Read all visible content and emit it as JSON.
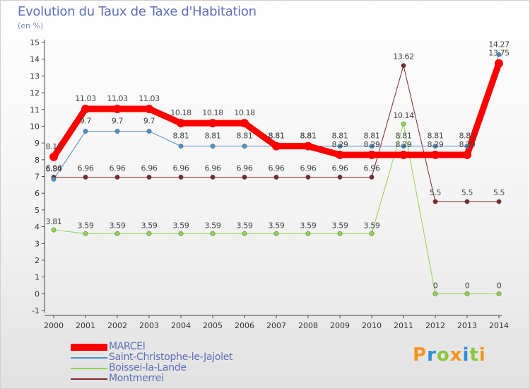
{
  "chart_data": {
    "type": "line",
    "title": "Evolution du Taux de Taxe d'Habitation",
    "subtitle": "(en %)",
    "x": [
      "2000",
      "2001",
      "2002",
      "2003",
      "2004",
      "2005",
      "2006",
      "2007",
      "2008",
      "2009",
      "2010",
      "2011",
      "2012",
      "2013",
      "2014"
    ],
    "ylim": [
      -1,
      15
    ],
    "yticks": [
      "-1",
      "0",
      "1",
      "2",
      "3",
      "4",
      "5",
      "6",
      "7",
      "8",
      "9",
      "10",
      "11",
      "12",
      "13",
      "14",
      "15"
    ],
    "grid": false,
    "series": [
      {
        "name": "MARCEI",
        "color": "#ff0000",
        "values": [
          8.17,
          11.03,
          11.03,
          11.03,
          10.18,
          10.18,
          10.18,
          8.81,
          8.81,
          8.29,
          8.29,
          8.29,
          8.29,
          8.29,
          13.75
        ],
        "labels": [
          "8.17",
          "11.03",
          "11.03",
          "11.03",
          "10.18",
          "10.18",
          "10.18",
          "8.81",
          "8.81",
          "8.29",
          "8.29",
          "8.29",
          "8.29",
          "8.29",
          "13.75"
        ]
      },
      {
        "name": "Saint-Christophe-le-Jajolet",
        "color": "#4f8fc9",
        "values": [
          6.84,
          9.7,
          9.7,
          9.7,
          8.81,
          8.81,
          8.81,
          8.81,
          8.81,
          8.81,
          8.81,
          8.81,
          8.81,
          8.81,
          14.27
        ],
        "labels": [
          "6.84",
          "9.7",
          "9.7",
          "9.7",
          "8.81",
          "8.81",
          "8.81",
          "8.81",
          "8.81",
          "8.81",
          "8.81",
          "8.81",
          "8.81",
          "8.81",
          "14.27"
        ]
      },
      {
        "name": "Boissei-la-Lande",
        "color": "#8fd44a",
        "values": [
          3.81,
          3.59,
          3.59,
          3.59,
          3.59,
          3.59,
          3.59,
          3.59,
          3.59,
          3.59,
          3.59,
          10.14,
          0,
          0,
          0
        ],
        "labels": [
          "3.81",
          "3.59",
          "3.59",
          "3.59",
          "3.59",
          "3.59",
          "3.59",
          "3.59",
          "3.59",
          "3.59",
          "3.59",
          "10.14",
          "0",
          "0",
          "0"
        ]
      },
      {
        "name": "Montmerrei",
        "color": "#7a2a2a",
        "values": [
          6.96,
          6.96,
          6.96,
          6.96,
          6.96,
          6.96,
          6.96,
          6.96,
          6.96,
          6.96,
          6.96,
          13.62,
          5.5,
          5.5,
          5.5
        ],
        "labels": [
          "6.96",
          "6.96",
          "6.96",
          "6.96",
          "6.96",
          "6.96",
          "6.96",
          "6.96",
          "6.96",
          "6.96",
          "6.96",
          "13.62",
          "5.5",
          "5.5",
          "5.5"
        ]
      }
    ],
    "legend_position": "bottom-left"
  },
  "logo": {
    "letters": [
      "P",
      "r",
      "o",
      "x",
      "i",
      "t",
      "i"
    ],
    "colors": [
      "#f7941d",
      "#2e8fd6",
      "#8cc63f",
      "#f7941d",
      "#2e8fd6",
      "#8cc63f",
      "#f7941d"
    ]
  }
}
